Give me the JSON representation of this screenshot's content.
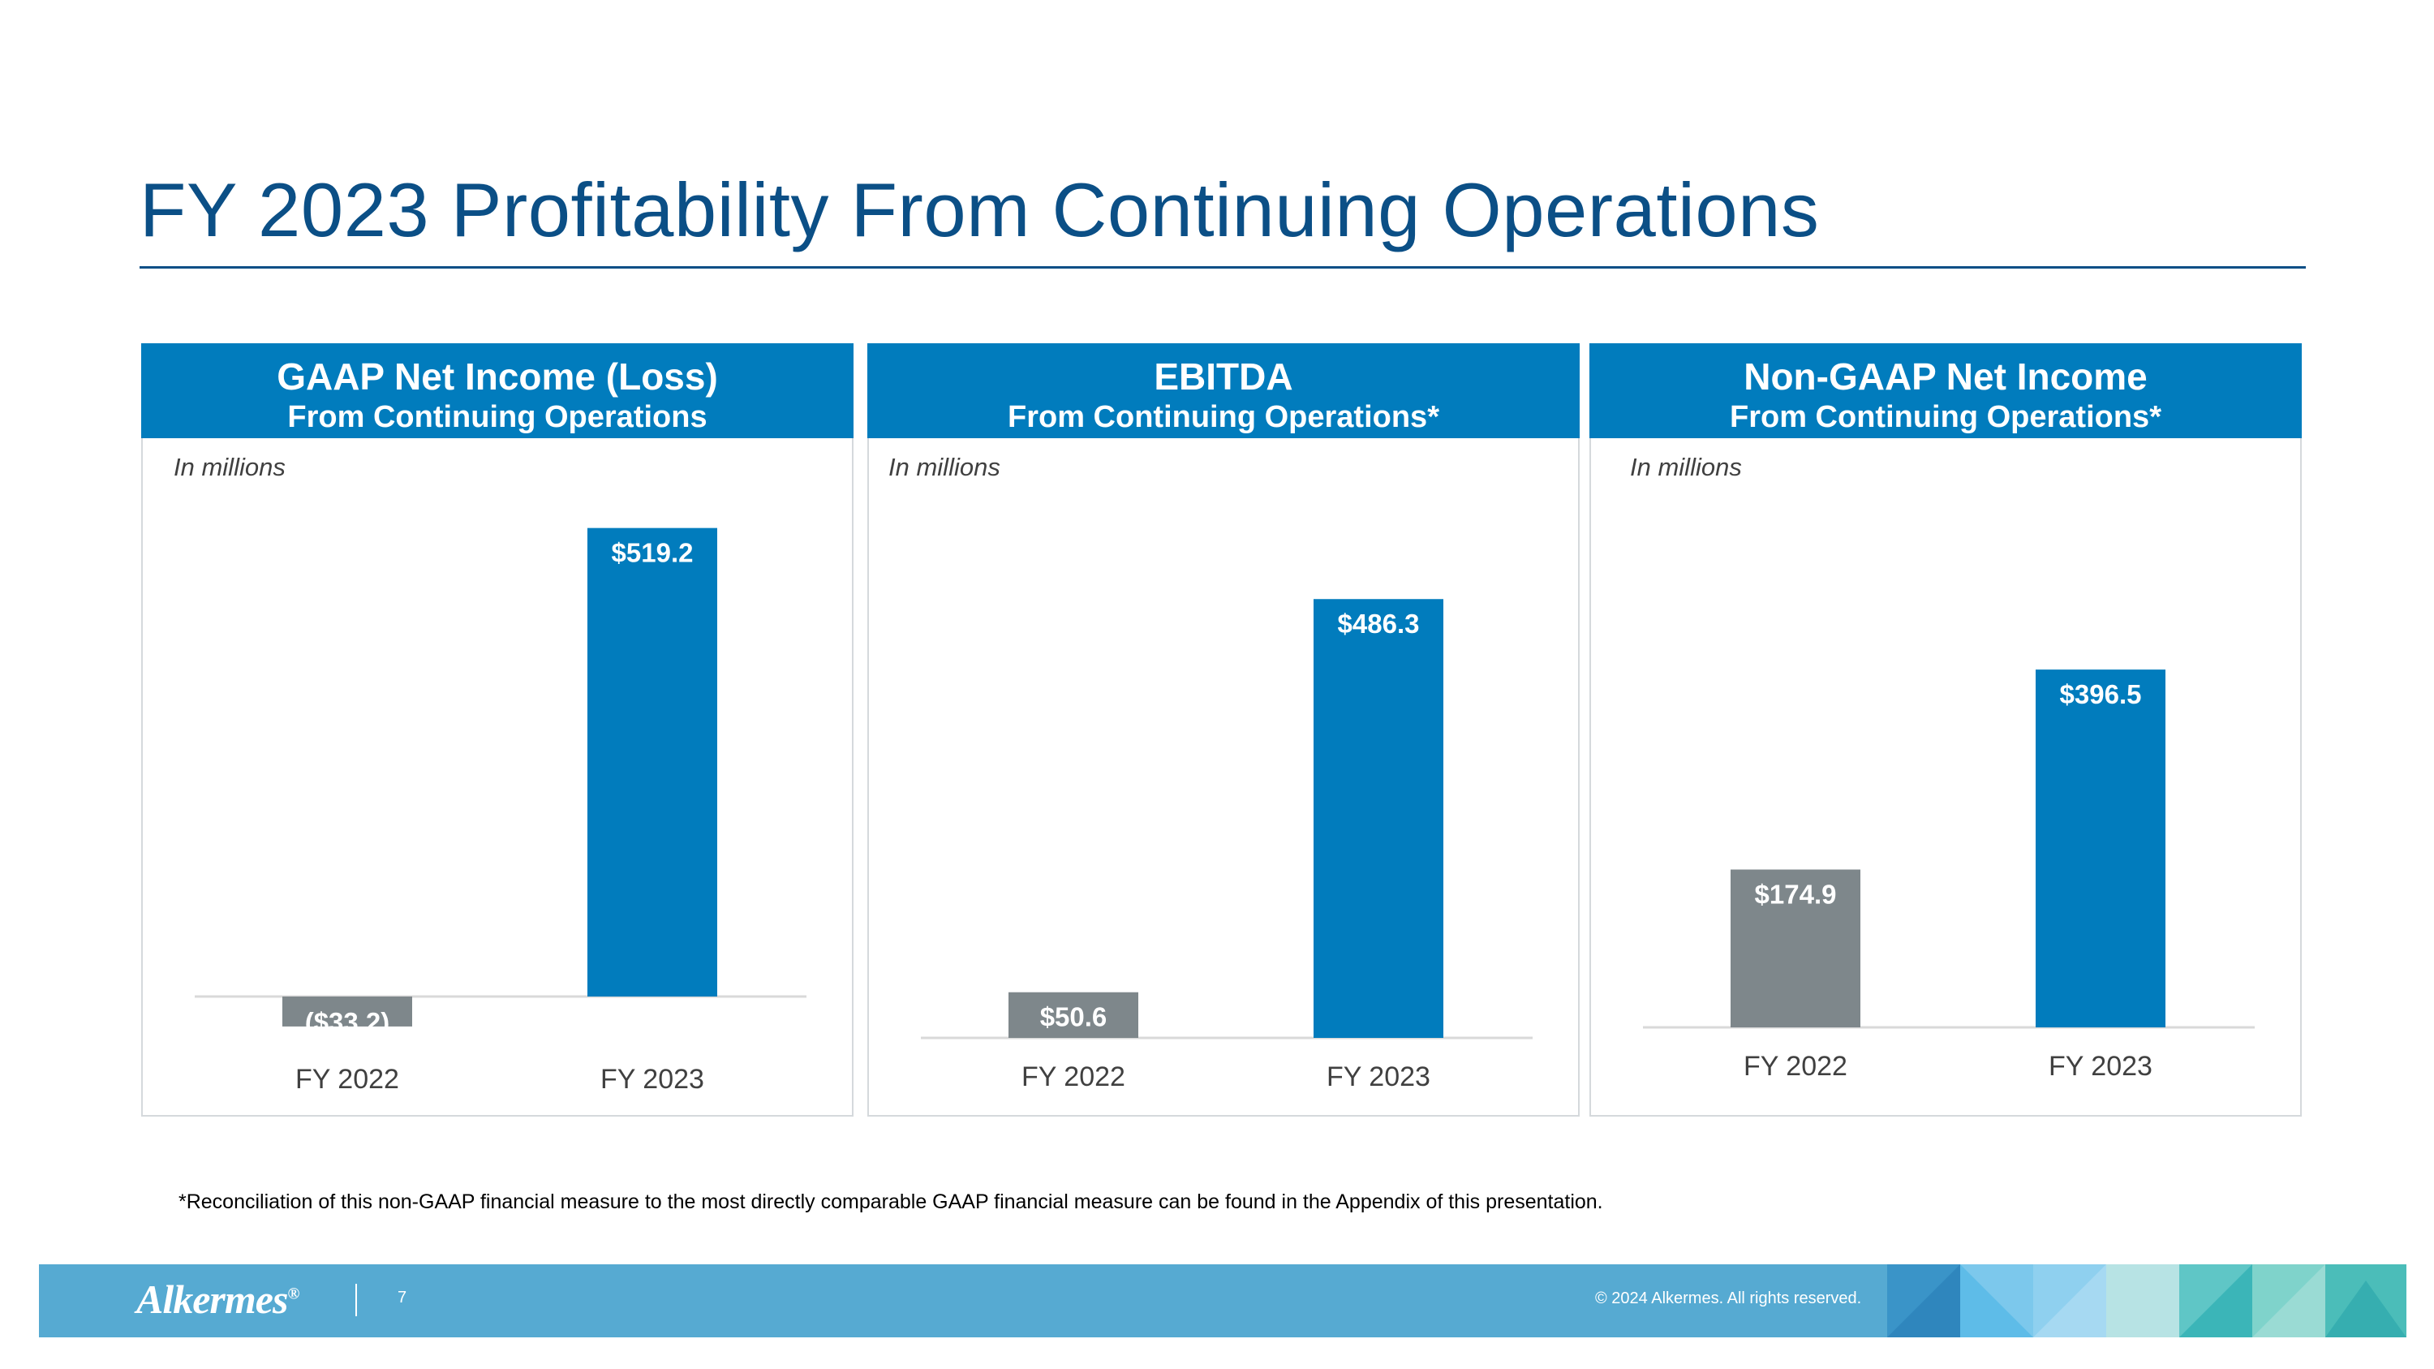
{
  "title": "FY 2023 Profitability From Continuing Operations",
  "footnote": "*Reconciliation of this non-GAAP financial measure to the most directly comparable GAAP financial measure can be found in the Appendix of this presentation.",
  "footer": {
    "logo": "Alkermes",
    "logo_mark": "®",
    "page_number": "7",
    "copyright": "© 2024 Alkermes. All rights reserved."
  },
  "colors": {
    "header": "#017cbd",
    "fy2022_bar": "#7e878b",
    "fy2023_bar": "#017cbd",
    "title": "#0b4f86",
    "footer": "#56aad2"
  },
  "panels": [
    {
      "title": "GAAP Net Income (Loss)",
      "subtitle": "From Continuing Operations",
      "units": "In millions"
    },
    {
      "title": "EBITDA",
      "subtitle": "From Continuing Operations*",
      "units": "In millions"
    },
    {
      "title": "Non-GAAP Net Income",
      "subtitle": "From Continuing Operations*",
      "units": "In millions"
    }
  ],
  "chart_data": [
    {
      "type": "bar",
      "title": "GAAP Net Income (Loss) From Continuing Operations",
      "units": "In millions",
      "categories": [
        "FY 2022",
        "FY 2023"
      ],
      "values": [
        -33.2,
        519.2
      ],
      "labels": [
        "($33.2)",
        "$519.2"
      ],
      "ylim": [
        -40,
        560
      ]
    },
    {
      "type": "bar",
      "title": "EBITDA From Continuing Operations*",
      "units": "In millions",
      "categories": [
        "FY 2022",
        "FY 2023"
      ],
      "values": [
        50.6,
        486.3
      ],
      "labels": [
        "$50.6",
        "$486.3"
      ],
      "ylim": [
        0,
        560
      ]
    },
    {
      "type": "bar",
      "title": "Non-GAAP Net Income From Continuing Operations*",
      "units": "In millions",
      "categories": [
        "FY 2022",
        "FY 2023"
      ],
      "values": [
        174.9,
        396.5
      ],
      "labels": [
        "$174.9",
        "$396.5"
      ],
      "ylim": [
        0,
        560
      ]
    }
  ]
}
